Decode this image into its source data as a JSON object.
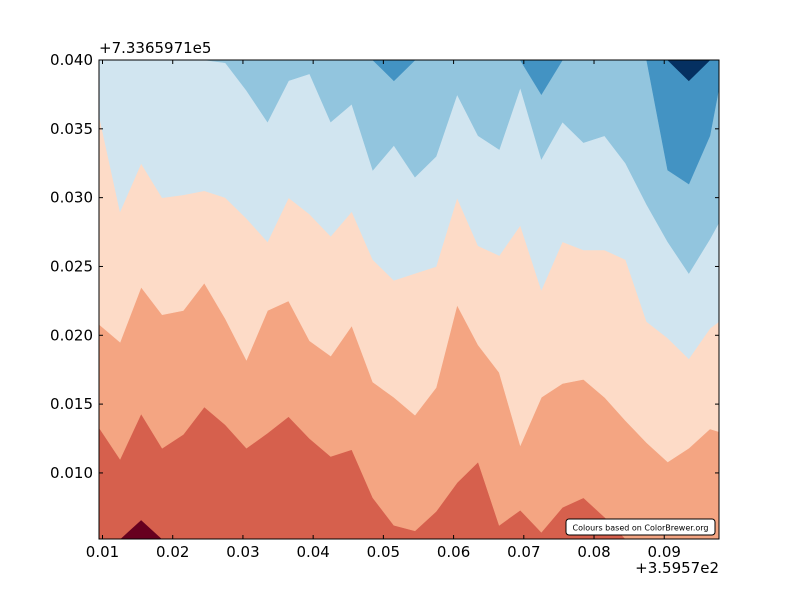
{
  "chart_data": {
    "type": "filled-contour",
    "x_offset_label": "+3.5957e2",
    "y_offset_label": "+7.3365971e5",
    "xlim": [
      0.0095,
      0.0978
    ],
    "ylim": [
      0.0052,
      0.04
    ],
    "x_ticks": [
      {
        "value": 0.01,
        "label": "0.01"
      },
      {
        "value": 0.02,
        "label": "0.02"
      },
      {
        "value": 0.03,
        "label": "0.03"
      },
      {
        "value": 0.04,
        "label": "0.04"
      },
      {
        "value": 0.05,
        "label": "0.05"
      },
      {
        "value": 0.06,
        "label": "0.06"
      },
      {
        "value": 0.07,
        "label": "0.07"
      },
      {
        "value": 0.08,
        "label": "0.08"
      },
      {
        "value": 0.09,
        "label": "0.09"
      }
    ],
    "y_ticks": [
      {
        "value": 0.01,
        "label": "0.010"
      },
      {
        "value": 0.015,
        "label": "0.015"
      },
      {
        "value": 0.02,
        "label": "0.020"
      },
      {
        "value": 0.025,
        "label": "0.025"
      },
      {
        "value": 0.03,
        "label": "0.030"
      },
      {
        "value": 0.035,
        "label": "0.035"
      },
      {
        "value": 0.04,
        "label": "0.040"
      }
    ],
    "annotation": "Colours based on ColorBrewer.org",
    "colors": [
      "#67001f",
      "#d6604d",
      "#f4a582",
      "#fddbc7",
      "#d1e5f0",
      "#92c5de",
      "#4393c3",
      "#053061"
    ],
    "x_samples": [
      0.0095,
      0.0125,
      0.0155,
      0.0185,
      0.0215,
      0.0245,
      0.0275,
      0.0305,
      0.0335,
      0.0365,
      0.0395,
      0.0425,
      0.0455,
      0.0485,
      0.0515,
      0.0545,
      0.0575,
      0.0605,
      0.0635,
      0.0665,
      0.0695,
      0.0725,
      0.0755,
      0.0785,
      0.0815,
      0.0845,
      0.0875,
      0.0905,
      0.0935,
      0.0965,
      0.0978
    ],
    "boundaries": [
      {
        "name": "b1",
        "y": [
          0.0052,
          0.0052,
          0.0066,
          0.0052,
          0.0052,
          0.0052,
          0.0052,
          0.0052,
          0.0052,
          0.0052,
          0.0052,
          0.0052,
          0.0052,
          0.0052,
          0.0052,
          0.0052,
          0.0052,
          0.0052,
          0.0052,
          0.0052,
          0.0052,
          0.0052,
          0.0052,
          0.0052,
          0.0052,
          0.0052,
          0.0052,
          0.0052,
          0.0052,
          0.0052,
          0.0052
        ]
      },
      {
        "name": "b2",
        "y": [
          0.0133,
          0.011,
          0.0143,
          0.0118,
          0.0128,
          0.0148,
          0.0135,
          0.0118,
          0.0129,
          0.0141,
          0.0125,
          0.0112,
          0.0117,
          0.0082,
          0.0062,
          0.0058,
          0.0072,
          0.0093,
          0.0108,
          0.0062,
          0.0073,
          0.0057,
          0.0075,
          0.0082,
          0.0068,
          0.0052,
          0.0052,
          0.0052,
          0.0052,
          0.0052,
          0.0052
        ]
      },
      {
        "name": "b3",
        "y": [
          0.0208,
          0.0195,
          0.0235,
          0.0215,
          0.0218,
          0.0238,
          0.0212,
          0.0182,
          0.0218,
          0.0225,
          0.0196,
          0.0185,
          0.0207,
          0.0166,
          0.0155,
          0.0142,
          0.0162,
          0.0222,
          0.0193,
          0.0173,
          0.012,
          0.0155,
          0.0165,
          0.0168,
          0.0155,
          0.0138,
          0.0122,
          0.0108,
          0.0118,
          0.0132,
          0.013
        ]
      },
      {
        "name": "b4",
        "y": [
          0.036,
          0.029,
          0.0325,
          0.03,
          0.0302,
          0.0305,
          0.03,
          0.0285,
          0.0268,
          0.03,
          0.0288,
          0.0272,
          0.029,
          0.0255,
          0.024,
          0.0245,
          0.025,
          0.03,
          0.0265,
          0.0258,
          0.028,
          0.0233,
          0.0268,
          0.0262,
          0.0262,
          0.0255,
          0.021,
          0.0198,
          0.0183,
          0.0205,
          0.021
        ]
      },
      {
        "name": "b5",
        "y": [
          0.04,
          0.04,
          0.04,
          0.04,
          0.04,
          0.04,
          0.0398,
          0.0378,
          0.0355,
          0.0385,
          0.039,
          0.0355,
          0.0368,
          0.032,
          0.0338,
          0.0315,
          0.033,
          0.0375,
          0.0345,
          0.0335,
          0.038,
          0.0328,
          0.0355,
          0.034,
          0.0345,
          0.0325,
          0.0295,
          0.0268,
          0.0245,
          0.027,
          0.0282
        ]
      },
      {
        "name": "b6",
        "y": [
          0.04,
          0.04,
          0.04,
          0.04,
          0.04,
          0.04,
          0.04,
          0.04,
          0.04,
          0.04,
          0.04,
          0.04,
          0.04,
          0.04,
          0.0385,
          0.04,
          0.04,
          0.04,
          0.04,
          0.04,
          0.04,
          0.0375,
          0.04,
          0.04,
          0.04,
          0.04,
          0.04,
          0.032,
          0.031,
          0.0345,
          0.038
        ]
      },
      {
        "name": "b7",
        "y": [
          0.04,
          0.04,
          0.04,
          0.04,
          0.04,
          0.04,
          0.04,
          0.04,
          0.04,
          0.04,
          0.04,
          0.04,
          0.04,
          0.04,
          0.04,
          0.04,
          0.04,
          0.04,
          0.04,
          0.04,
          0.04,
          0.04,
          0.04,
          0.04,
          0.04,
          0.04,
          0.04,
          0.04,
          0.0385,
          0.04,
          0.04
        ]
      }
    ]
  }
}
